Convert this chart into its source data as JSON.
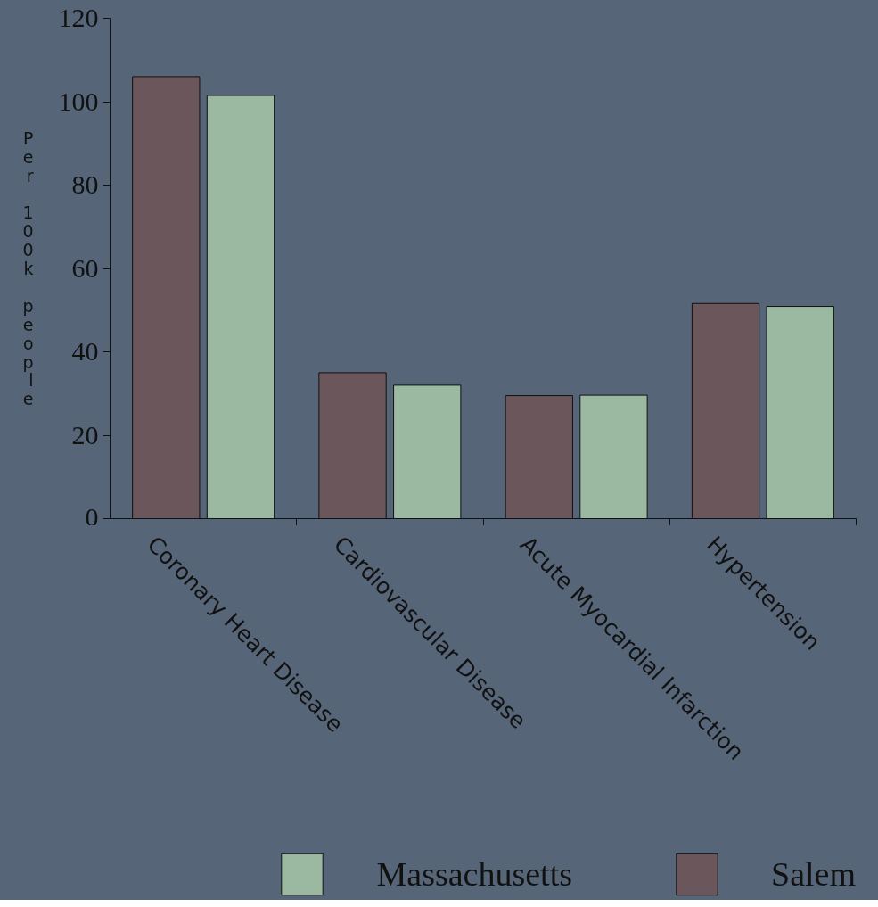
{
  "chart_data": {
    "type": "bar",
    "ylabel": "Per 100k people",
    "categories": [
      "Coronary Heart Disease",
      "Cardiovascular Disease",
      "Acute Myocardial Infarction",
      "Hypertension"
    ],
    "series": [
      {
        "name": "Salem",
        "color": "#6b565b",
        "values": [
          106,
          35,
          29.5,
          51.6
        ]
      },
      {
        "name": "Massachusetts",
        "color": "#9bb8a0",
        "values": [
          101.5,
          32,
          29.6,
          50.9
        ]
      }
    ],
    "ylim": [
      0,
      120
    ],
    "yticks": [
      0,
      20,
      40,
      60,
      80,
      100,
      120
    ],
    "legend": "bottom"
  }
}
